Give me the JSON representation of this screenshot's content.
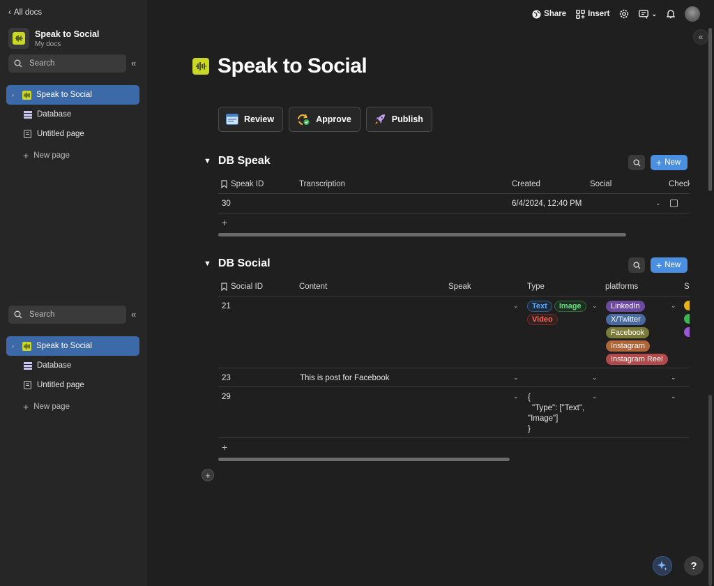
{
  "sidebar": {
    "back_label": "All docs",
    "doc_title": "Speak to Social",
    "doc_subtitle": "My docs",
    "search_placeholder": "Search",
    "items": [
      {
        "label": "Speak to Social"
      },
      {
        "label": "Database"
      },
      {
        "label": "Untitled page"
      }
    ],
    "new_page_label": "New page"
  },
  "topbar": {
    "share_label": "Share",
    "insert_label": "Insert"
  },
  "page": {
    "title": "Speak to Social",
    "actions": [
      {
        "label": "Review",
        "icon": "window-icon"
      },
      {
        "label": "Approve",
        "icon": "refresh-check-icon"
      },
      {
        "label": "Publish",
        "icon": "rocket-icon"
      }
    ]
  },
  "db_speak": {
    "title": "DB Speak",
    "new_label": "New",
    "columns": [
      "Speak ID",
      "Transcription",
      "Created",
      "Social",
      "Check"
    ],
    "rows": [
      {
        "id": "30",
        "transcription": "",
        "created": "6/4/2024, 12:40 PM",
        "social": ""
      }
    ]
  },
  "db_social": {
    "title": "DB Social",
    "new_label": "New",
    "columns": [
      "Social ID",
      "Content",
      "Speak",
      "Type",
      "platforms",
      "St"
    ],
    "rows": [
      {
        "id": "21",
        "content": "",
        "types": [
          "Text",
          "Image",
          "Video"
        ],
        "platforms": [
          "LinkedIn",
          "X/Twitter",
          "Facebook",
          "Instagram",
          "Instagram Reel"
        ]
      },
      {
        "id": "23",
        "content": "This is post for Facebook",
        "types": [],
        "platforms": []
      },
      {
        "id": "29",
        "content": "",
        "type_json": [
          "{",
          "\"Type\": [\"Text\",",
          "\"Image\"]",
          "}"
        ],
        "platforms": []
      }
    ]
  },
  "colors": {
    "accent": "#4a8fe0",
    "active_nav": "#3c69a8",
    "linkedin": "#6c4aa0",
    "x_twitter": "#4a6aa0",
    "facebook": "#7a7a3a",
    "instagram": "#b0663a",
    "instagram_reel": "#b04a4a"
  }
}
